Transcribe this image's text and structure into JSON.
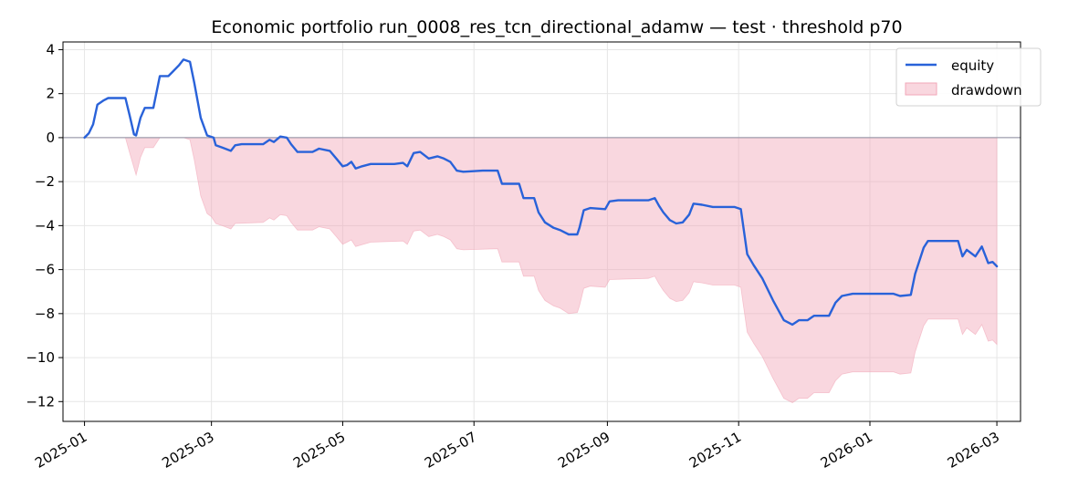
{
  "chart_data": {
    "type": "line",
    "title": "Economic portfolio run_0008_res_tcn_directional_adamw — test · threshold p70",
    "xlabel": "",
    "ylabel": "",
    "ylim": [
      -12.9,
      4.35
    ],
    "xlim": [
      "2024-12-22",
      "2026-03-12"
    ],
    "grid": true,
    "legend_position": "top-right",
    "y_ticks": [
      4,
      2,
      0,
      -2,
      -4,
      -6,
      -8,
      -10,
      -12
    ],
    "y_tick_labels": [
      "4",
      "2",
      "0",
      "−2",
      "−4",
      "−6",
      "−8",
      "−10",
      "−12"
    ],
    "x_ticks": [
      "2025-01-01",
      "2025-03-01",
      "2025-05-01",
      "2025-07-01",
      "2025-09-01",
      "2025-11-01",
      "2026-01-01",
      "2026-03-01"
    ],
    "x_tick_labels": [
      "2025-01",
      "2025-03",
      "2025-05",
      "2025-07",
      "2025-09",
      "2025-11",
      "2026-01",
      "2026-03"
    ],
    "colors": {
      "equity": "#2962d9",
      "drawdown": "#f2a7b8",
      "zero_line": "#8b8b9e"
    },
    "series": [
      {
        "name": "equity",
        "type": "line",
        "points": [
          [
            "2025-01-01",
            0.0
          ],
          [
            "2025-01-03",
            0.2
          ],
          [
            "2025-01-05",
            0.6
          ],
          [
            "2025-01-07",
            1.5
          ],
          [
            "2025-01-10",
            1.7
          ],
          [
            "2025-01-12",
            1.8
          ],
          [
            "2025-01-20",
            1.8
          ],
          [
            "2025-01-22",
            1.0
          ],
          [
            "2025-01-24",
            0.15
          ],
          [
            "2025-01-25",
            0.1
          ],
          [
            "2025-01-27",
            0.9
          ],
          [
            "2025-01-29",
            1.35
          ],
          [
            "2025-02-02",
            1.35
          ],
          [
            "2025-02-05",
            2.8
          ],
          [
            "2025-02-09",
            2.8
          ],
          [
            "2025-02-11",
            3.0
          ],
          [
            "2025-02-14",
            3.3
          ],
          [
            "2025-02-16",
            3.55
          ],
          [
            "2025-02-19",
            3.45
          ],
          [
            "2025-02-21",
            2.5
          ],
          [
            "2025-02-24",
            0.9
          ],
          [
            "2025-02-27",
            0.1
          ],
          [
            "2025-03-02",
            0.0
          ],
          [
            "2025-03-03",
            -0.35
          ],
          [
            "2025-03-06",
            -0.45
          ],
          [
            "2025-03-10",
            -0.6
          ],
          [
            "2025-03-12",
            -0.35
          ],
          [
            "2025-03-15",
            -0.3
          ],
          [
            "2025-03-25",
            -0.3
          ],
          [
            "2025-03-28",
            -0.1
          ],
          [
            "2025-03-30",
            -0.2
          ],
          [
            "2025-04-02",
            0.05
          ],
          [
            "2025-04-05",
            0.0
          ],
          [
            "2025-04-07",
            -0.3
          ],
          [
            "2025-04-10",
            -0.65
          ],
          [
            "2025-04-17",
            -0.65
          ],
          [
            "2025-04-20",
            -0.5
          ],
          [
            "2025-04-25",
            -0.6
          ],
          [
            "2025-04-28",
            -0.95
          ],
          [
            "2025-05-01",
            -1.3
          ],
          [
            "2025-05-03",
            -1.25
          ],
          [
            "2025-05-05",
            -1.1
          ],
          [
            "2025-05-07",
            -1.4
          ],
          [
            "2025-05-10",
            -1.3
          ],
          [
            "2025-05-14",
            -1.2
          ],
          [
            "2025-05-25",
            -1.2
          ],
          [
            "2025-05-29",
            -1.15
          ],
          [
            "2025-05-31",
            -1.3
          ],
          [
            "2025-06-03",
            -0.7
          ],
          [
            "2025-06-06",
            -0.65
          ],
          [
            "2025-06-10",
            -0.95
          ],
          [
            "2025-06-14",
            -0.85
          ],
          [
            "2025-06-17",
            -0.95
          ],
          [
            "2025-06-20",
            -1.1
          ],
          [
            "2025-06-23",
            -1.5
          ],
          [
            "2025-06-26",
            -1.55
          ],
          [
            "2025-07-05",
            -1.5
          ],
          [
            "2025-07-12",
            -1.5
          ],
          [
            "2025-07-14",
            -2.1
          ],
          [
            "2025-07-22",
            -2.1
          ],
          [
            "2025-07-24",
            -2.75
          ],
          [
            "2025-07-29",
            -2.75
          ],
          [
            "2025-07-31",
            -3.4
          ],
          [
            "2025-08-03",
            -3.85
          ],
          [
            "2025-08-07",
            -4.1
          ],
          [
            "2025-08-10",
            -4.2
          ],
          [
            "2025-08-14",
            -4.4
          ],
          [
            "2025-08-18",
            -4.4
          ],
          [
            "2025-08-19",
            -4.1
          ],
          [
            "2025-08-21",
            -3.3
          ],
          [
            "2025-08-24",
            -3.2
          ],
          [
            "2025-08-31",
            -3.25
          ],
          [
            "2025-09-02",
            -2.9
          ],
          [
            "2025-09-06",
            -2.85
          ],
          [
            "2025-09-14",
            -2.85
          ],
          [
            "2025-09-20",
            -2.85
          ],
          [
            "2025-09-23",
            -2.75
          ],
          [
            "2025-09-25",
            -3.1
          ],
          [
            "2025-09-27",
            -3.4
          ],
          [
            "2025-09-30",
            -3.75
          ],
          [
            "2025-10-03",
            -3.9
          ],
          [
            "2025-10-06",
            -3.85
          ],
          [
            "2025-10-09",
            -3.5
          ],
          [
            "2025-10-11",
            -3.0
          ],
          [
            "2025-10-15",
            -3.05
          ],
          [
            "2025-10-20",
            -3.15
          ],
          [
            "2025-10-27",
            -3.15
          ],
          [
            "2025-10-30",
            -3.15
          ],
          [
            "2025-11-02",
            -3.25
          ],
          [
            "2025-11-05",
            -5.3
          ],
          [
            "2025-11-08",
            -5.8
          ],
          [
            "2025-11-12",
            -6.4
          ],
          [
            "2025-11-17",
            -7.4
          ],
          [
            "2025-11-22",
            -8.3
          ],
          [
            "2025-11-26",
            -8.5
          ],
          [
            "2025-11-29",
            -8.3
          ],
          [
            "2025-12-03",
            -8.3
          ],
          [
            "2025-12-06",
            -8.1
          ],
          [
            "2025-12-13",
            -8.1
          ],
          [
            "2025-12-16",
            -7.5
          ],
          [
            "2025-12-19",
            -7.2
          ],
          [
            "2025-12-24",
            -7.1
          ],
          [
            "2026-01-05",
            -7.1
          ],
          [
            "2026-01-12",
            -7.1
          ],
          [
            "2026-01-15",
            -7.2
          ],
          [
            "2026-01-20",
            -7.15
          ],
          [
            "2026-01-22",
            -6.2
          ],
          [
            "2026-01-26",
            -5.0
          ],
          [
            "2026-01-28",
            -4.7
          ],
          [
            "2026-02-11",
            -4.7
          ],
          [
            "2026-02-13",
            -5.4
          ],
          [
            "2026-02-15",
            -5.1
          ],
          [
            "2026-02-19",
            -5.4
          ],
          [
            "2026-02-22",
            -4.95
          ],
          [
            "2026-02-25",
            -5.7
          ],
          [
            "2026-02-27",
            -5.65
          ],
          [
            "2026-03-01",
            -5.85
          ]
        ]
      },
      {
        "name": "drawdown",
        "type": "area",
        "points": [
          [
            "2025-01-01",
            0.0
          ],
          [
            "2025-01-20",
            0.0
          ],
          [
            "2025-01-22",
            -0.7
          ],
          [
            "2025-01-25",
            -1.7
          ],
          [
            "2025-01-27",
            -0.9
          ],
          [
            "2025-01-29",
            -0.45
          ],
          [
            "2025-02-02",
            -0.45
          ],
          [
            "2025-02-05",
            0.0
          ],
          [
            "2025-02-16",
            0.0
          ],
          [
            "2025-02-19",
            -0.1
          ],
          [
            "2025-02-21",
            -1.0
          ],
          [
            "2025-02-24",
            -2.65
          ],
          [
            "2025-02-27",
            -3.45
          ],
          [
            "2025-03-01",
            -3.6
          ],
          [
            "2025-03-03",
            -3.9
          ],
          [
            "2025-03-06",
            -4.0
          ],
          [
            "2025-03-10",
            -4.15
          ],
          [
            "2025-03-12",
            -3.9
          ],
          [
            "2025-03-25",
            -3.85
          ],
          [
            "2025-03-28",
            -3.65
          ],
          [
            "2025-03-30",
            -3.75
          ],
          [
            "2025-04-02",
            -3.5
          ],
          [
            "2025-04-05",
            -3.55
          ],
          [
            "2025-04-07",
            -3.85
          ],
          [
            "2025-04-10",
            -4.2
          ],
          [
            "2025-04-17",
            -4.2
          ],
          [
            "2025-04-20",
            -4.05
          ],
          [
            "2025-04-25",
            -4.15
          ],
          [
            "2025-04-28",
            -4.5
          ],
          [
            "2025-05-01",
            -4.85
          ],
          [
            "2025-05-05",
            -4.65
          ],
          [
            "2025-05-07",
            -4.95
          ],
          [
            "2025-05-14",
            -4.75
          ],
          [
            "2025-05-29",
            -4.7
          ],
          [
            "2025-05-31",
            -4.85
          ],
          [
            "2025-06-03",
            -4.25
          ],
          [
            "2025-06-06",
            -4.2
          ],
          [
            "2025-06-10",
            -4.5
          ],
          [
            "2025-06-14",
            -4.4
          ],
          [
            "2025-06-17",
            -4.5
          ],
          [
            "2025-06-20",
            -4.65
          ],
          [
            "2025-06-23",
            -5.05
          ],
          [
            "2025-06-26",
            -5.1
          ],
          [
            "2025-07-12",
            -5.05
          ],
          [
            "2025-07-14",
            -5.65
          ],
          [
            "2025-07-22",
            -5.65
          ],
          [
            "2025-07-24",
            -6.3
          ],
          [
            "2025-07-29",
            -6.3
          ],
          [
            "2025-07-31",
            -6.95
          ],
          [
            "2025-08-03",
            -7.4
          ],
          [
            "2025-08-07",
            -7.65
          ],
          [
            "2025-08-10",
            -7.75
          ],
          [
            "2025-08-14",
            -8.0
          ],
          [
            "2025-08-18",
            -7.95
          ],
          [
            "2025-08-19",
            -7.65
          ],
          [
            "2025-08-21",
            -6.85
          ],
          [
            "2025-08-24",
            -6.75
          ],
          [
            "2025-08-31",
            -6.8
          ],
          [
            "2025-09-02",
            -6.45
          ],
          [
            "2025-09-20",
            -6.4
          ],
          [
            "2025-09-23",
            -6.3
          ],
          [
            "2025-09-25",
            -6.65
          ],
          [
            "2025-09-27",
            -6.95
          ],
          [
            "2025-09-30",
            -7.3
          ],
          [
            "2025-10-03",
            -7.45
          ],
          [
            "2025-10-06",
            -7.4
          ],
          [
            "2025-10-09",
            -7.05
          ],
          [
            "2025-10-11",
            -6.55
          ],
          [
            "2025-10-15",
            -6.6
          ],
          [
            "2025-10-20",
            -6.7
          ],
          [
            "2025-10-30",
            -6.7
          ],
          [
            "2025-11-02",
            -6.8
          ],
          [
            "2025-11-05",
            -8.85
          ],
          [
            "2025-11-08",
            -9.35
          ],
          [
            "2025-11-12",
            -9.95
          ],
          [
            "2025-11-17",
            -10.95
          ],
          [
            "2025-11-22",
            -11.85
          ],
          [
            "2025-11-26",
            -12.05
          ],
          [
            "2025-11-29",
            -11.85
          ],
          [
            "2025-12-03",
            -11.85
          ],
          [
            "2025-12-06",
            -11.6
          ],
          [
            "2025-12-13",
            -11.6
          ],
          [
            "2025-12-16",
            -11.05
          ],
          [
            "2025-12-19",
            -10.75
          ],
          [
            "2025-12-24",
            -10.65
          ],
          [
            "2026-01-12",
            -10.65
          ],
          [
            "2026-01-15",
            -10.75
          ],
          [
            "2026-01-20",
            -10.7
          ],
          [
            "2026-01-22",
            -9.75
          ],
          [
            "2026-01-26",
            -8.55
          ],
          [
            "2026-01-28",
            -8.25
          ],
          [
            "2026-02-11",
            -8.25
          ],
          [
            "2026-02-13",
            -8.95
          ],
          [
            "2026-02-15",
            -8.65
          ],
          [
            "2026-02-19",
            -8.95
          ],
          [
            "2026-02-22",
            -8.5
          ],
          [
            "2026-02-25",
            -9.25
          ],
          [
            "2026-02-27",
            -9.2
          ],
          [
            "2026-03-01",
            -9.4
          ]
        ]
      }
    ]
  }
}
